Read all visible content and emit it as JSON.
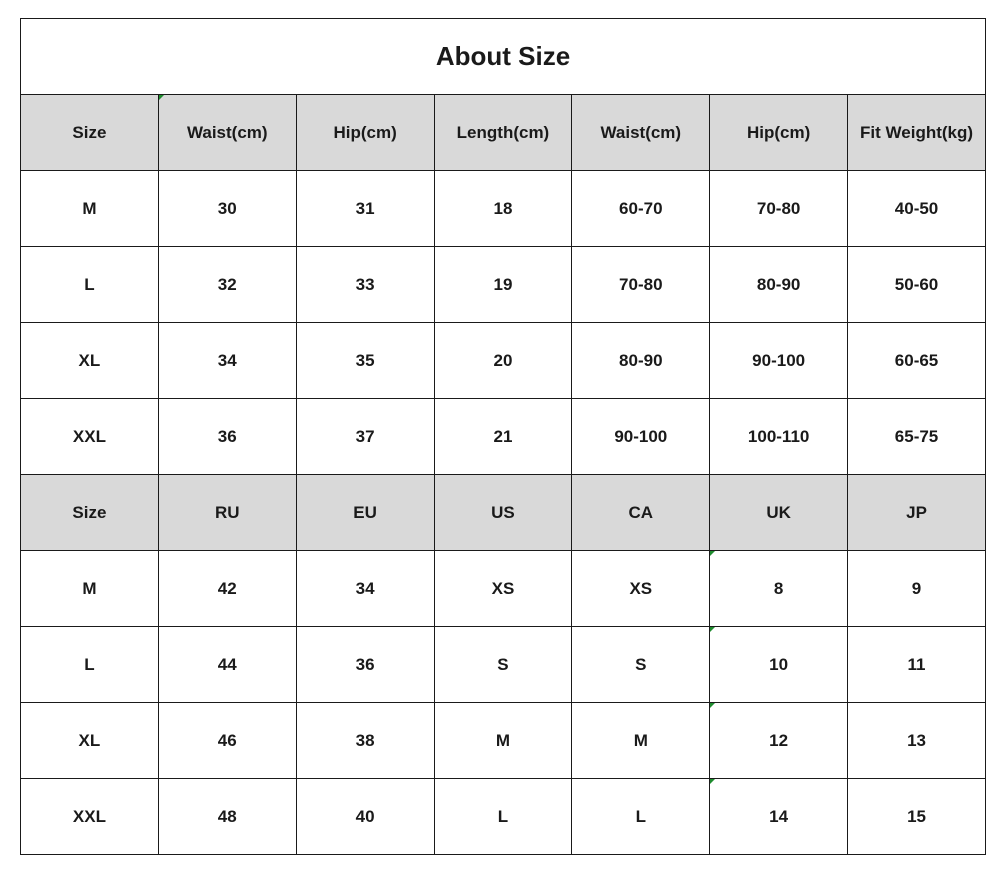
{
  "title": "About Size",
  "table1": {
    "headers": [
      "Size",
      "Waist(cm)",
      "Hip(cm)",
      "Length(cm)",
      "Waist(cm)",
      "Hip(cm)",
      "Fit Weight(kg)"
    ],
    "rows": [
      [
        "M",
        "30",
        "31",
        "18",
        "60-70",
        "70-80",
        "40-50"
      ],
      [
        "L",
        "32",
        "33",
        "19",
        "70-80",
        "80-90",
        "50-60"
      ],
      [
        "XL",
        "34",
        "35",
        "20",
        "80-90",
        "90-100",
        "60-65"
      ],
      [
        "XXL",
        "36",
        "37",
        "21",
        "90-100",
        "100-110",
        "65-75"
      ]
    ]
  },
  "table2": {
    "headers": [
      "Size",
      "RU",
      "EU",
      "US",
      "CA",
      "UK",
      "JP"
    ],
    "rows": [
      [
        "M",
        "42",
        "34",
        "XS",
        "XS",
        "8",
        "9"
      ],
      [
        "L",
        "44",
        "36",
        "S",
        "S",
        "10",
        "11"
      ],
      [
        "XL",
        "46",
        "38",
        "M",
        "M",
        "12",
        "13"
      ],
      [
        "XXL",
        "48",
        "40",
        "L",
        "L",
        "14",
        "15"
      ]
    ]
  },
  "colors": {
    "header_bg": "#d9d9d9",
    "border": "#1a1a1a",
    "comment_marker": "#1e8c2e"
  }
}
